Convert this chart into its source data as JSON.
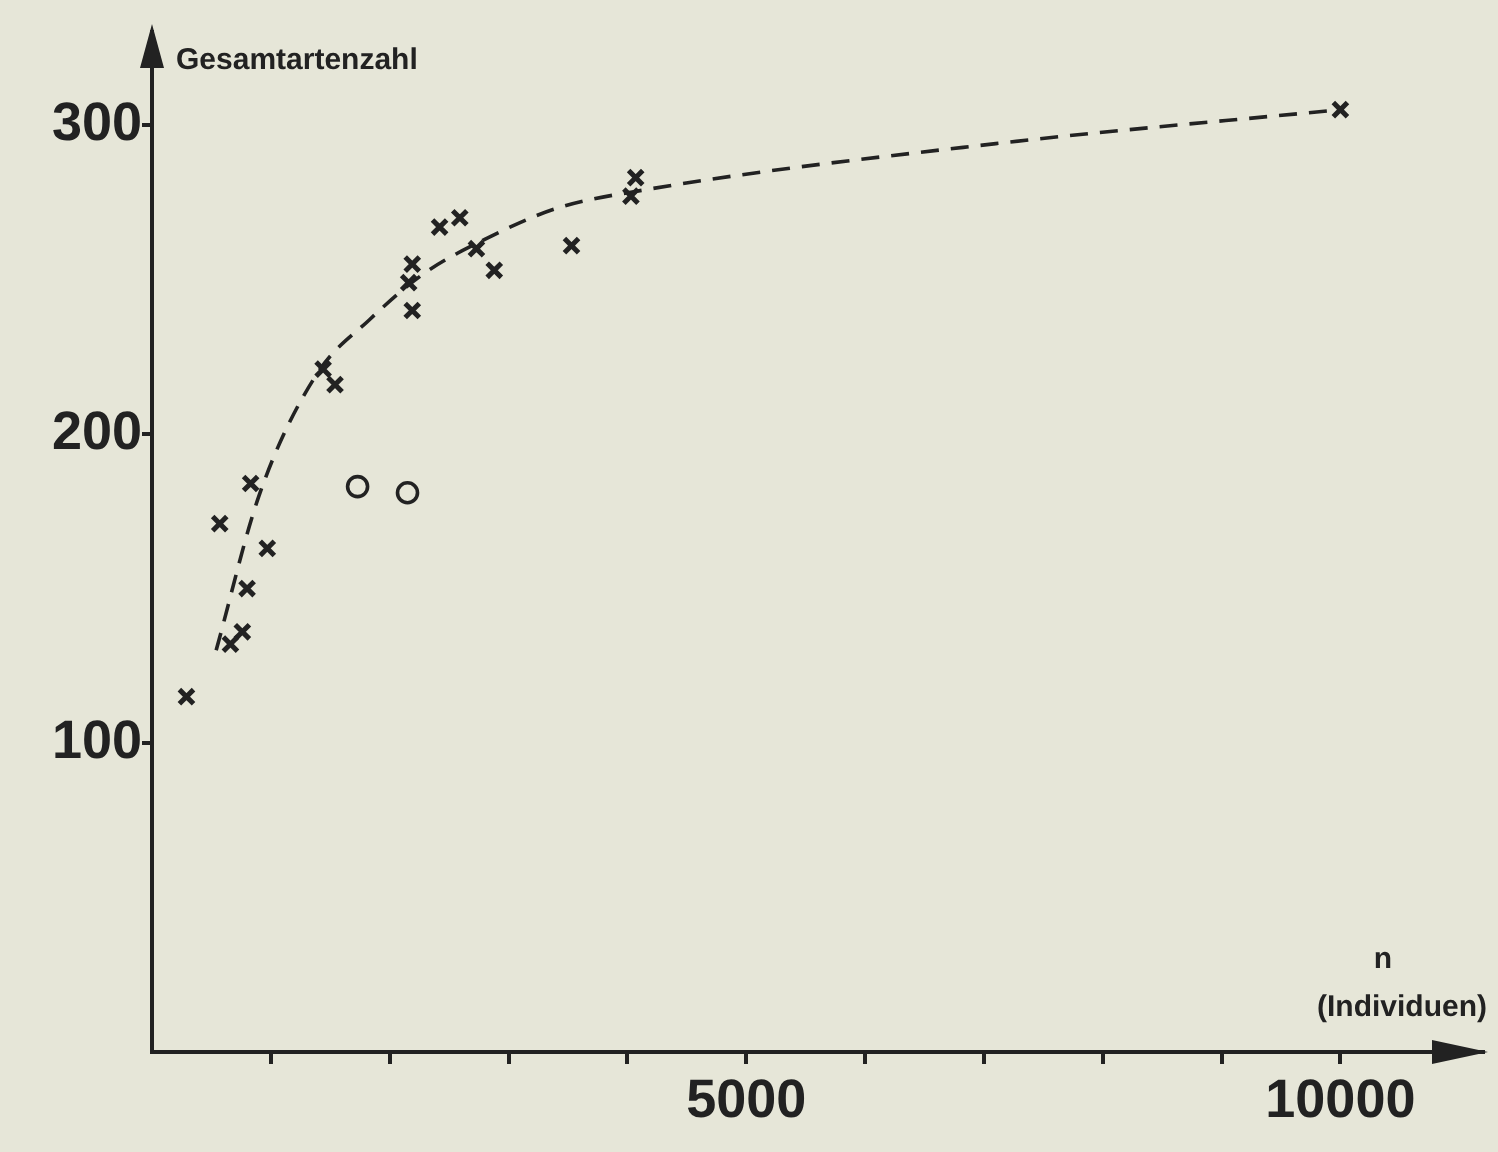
{
  "chart_data": {
    "type": "scatter",
    "xlabel": "n\n(Individuen)",
    "ylabel": "Gesamtartenzahl",
    "xlim": [
      0,
      11200
    ],
    "ylim": [
      0,
      330
    ],
    "xticks": [
      {
        "value": 1000,
        "label": null
      },
      {
        "value": 2000,
        "label": null
      },
      {
        "value": 3000,
        "label": null
      },
      {
        "value": 4000,
        "label": null
      },
      5000,
      {
        "value": 6000,
        "label": null
      },
      {
        "value": 7000,
        "label": null
      },
      {
        "value": 8000,
        "label": null
      },
      {
        "value": 9000,
        "label": null
      },
      10000
    ],
    "yticks": [
      100,
      200,
      300
    ],
    "grid": false,
    "legend": false,
    "series": [
      {
        "type": "scatter",
        "marker": "cross",
        "color": "#222222",
        "x": [
          290,
          570,
          830,
          970,
          800,
          760,
          660,
          1440,
          1540,
          2190,
          2160,
          2190,
          2420,
          2590,
          2730,
          2880,
          3530,
          4030,
          4070,
          10000
        ],
        "values": [
          115,
          171,
          184,
          163,
          150,
          136,
          132,
          221,
          216,
          240,
          249,
          255,
          267,
          270,
          260,
          253,
          261,
          277,
          283,
          305
        ]
      },
      {
        "type": "scatter",
        "marker": "circle",
        "color": "#222222",
        "x": [
          1730,
          2150
        ],
        "values": [
          183,
          181
        ]
      },
      {
        "type": "line",
        "marker": "none",
        "line_style": "dashed",
        "color": "#222222",
        "x": [
          540,
          900,
          1380,
          1830,
          2290,
          2800,
          3400,
          4140,
          7100,
          10000
        ],
        "values": [
          130,
          180,
          219,
          237,
          252,
          263,
          273,
          279,
          294,
          305
        ]
      }
    ]
  }
}
